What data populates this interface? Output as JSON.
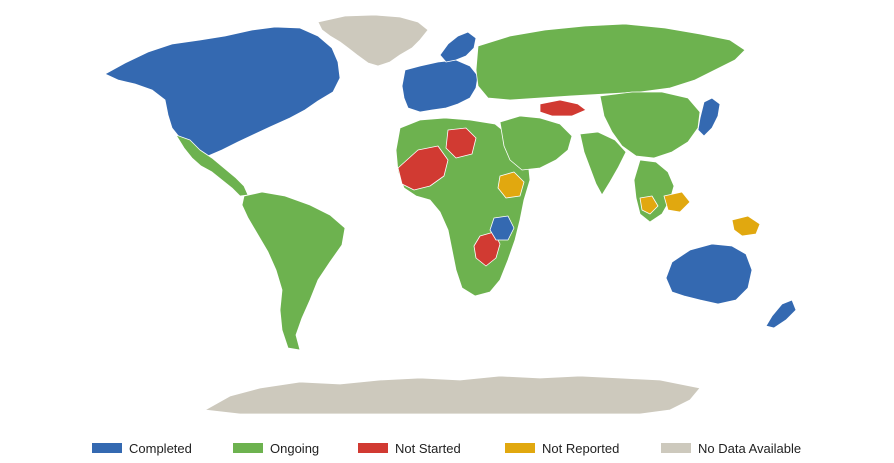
{
  "map": {
    "colors": {
      "completed": "#3469b1",
      "ongoing": "#6db24f",
      "not_started": "#d13a32",
      "not_reported": "#e1a80f",
      "no_data": "#cdc9bd",
      "ocean": "#ffffff",
      "border": "#ffffff"
    },
    "legend": [
      {
        "key": "completed",
        "label": "Completed",
        "color": "#3469b1"
      },
      {
        "key": "ongoing",
        "label": "Ongoing",
        "color": "#6db24f"
      },
      {
        "key": "not_started",
        "label": "Not Started",
        "color": "#d13a32"
      },
      {
        "key": "not_reported",
        "label": "Not Reported",
        "color": "#e1a80f"
      },
      {
        "key": "no_data",
        "label": "No Data Available",
        "color": "#cdc9bd"
      }
    ],
    "regions": [
      {
        "name": "greenland",
        "status": "no_data"
      },
      {
        "name": "north-america",
        "status": "completed"
      },
      {
        "name": "mexico-central-america",
        "status": "ongoing"
      },
      {
        "name": "south-america",
        "status": "ongoing"
      },
      {
        "name": "western-europe",
        "status": "completed"
      },
      {
        "name": "scandinavia",
        "status": "completed"
      },
      {
        "name": "russia",
        "status": "ongoing"
      },
      {
        "name": "africa",
        "status": "ongoing"
      },
      {
        "name": "middle-east",
        "status": "ongoing"
      },
      {
        "name": "india",
        "status": "ongoing"
      },
      {
        "name": "china",
        "status": "ongoing"
      },
      {
        "name": "japan",
        "status": "completed"
      },
      {
        "name": "southeast-asia",
        "status": "ongoing"
      },
      {
        "name": "australia",
        "status": "completed"
      },
      {
        "name": "new-zealand",
        "status": "completed"
      },
      {
        "name": "antarctica",
        "status": "no_data"
      },
      {
        "name": "west-africa-sahel",
        "status": "not_started"
      },
      {
        "name": "libya",
        "status": "not_started"
      },
      {
        "name": "central-asia",
        "status": "not_started"
      },
      {
        "name": "southern-africa-east",
        "status": "not_started"
      },
      {
        "name": "ethiopia",
        "status": "not_reported"
      },
      {
        "name": "indonesia-islands",
        "status": "not_reported"
      },
      {
        "name": "papua-new-guinea",
        "status": "not_reported"
      },
      {
        "name": "tanzania",
        "status": "completed"
      }
    ]
  }
}
